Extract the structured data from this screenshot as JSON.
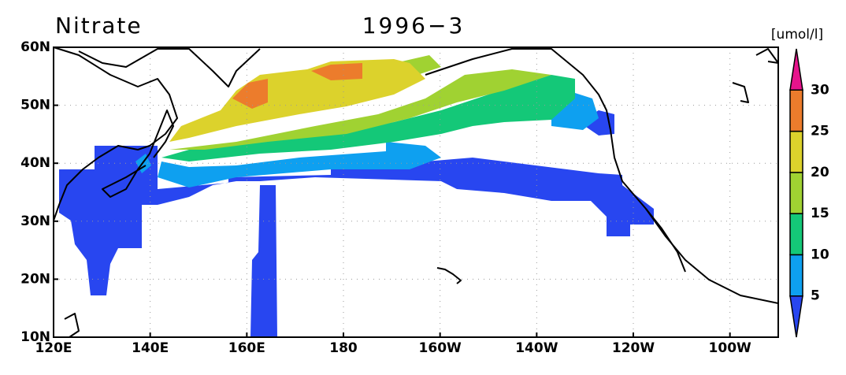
{
  "map": {
    "title": "Nitrate",
    "subtitle": "1996−3",
    "unit": "[umol/l]",
    "lonlim": [
      120,
      270
    ],
    "latlim": [
      10,
      60
    ],
    "lonticks": [
      {
        "value": 120,
        "label": "120E"
      },
      {
        "value": 140,
        "label": "140E"
      },
      {
        "value": 160,
        "label": "160E"
      },
      180,
      {
        "value": 200,
        "label": "160W"
      },
      {
        "value": 220,
        "label": "140W"
      },
      {
        "value": 240,
        "label": "120W"
      },
      {
        "value": 260,
        "label": "100W"
      }
    ],
    "latticks": [
      {
        "value": 10,
        "label": "10N"
      },
      {
        "value": 20,
        "label": "20N"
      },
      {
        "value": 30,
        "label": "30N"
      },
      {
        "value": 40,
        "label": "40N"
      },
      {
        "value": 50,
        "label": "50N"
      },
      {
        "value": 60,
        "label": "60N"
      }
    ],
    "grid": true,
    "colorbar": {
      "levels": [
        5,
        10,
        15,
        20,
        25,
        30
      ],
      "colors": [
        "#2846f0",
        "#0ea0f0",
        "#14c878",
        "#a0d232",
        "#dcd22c",
        "#ec7c2c",
        "#e6148c"
      ]
    }
  }
}
